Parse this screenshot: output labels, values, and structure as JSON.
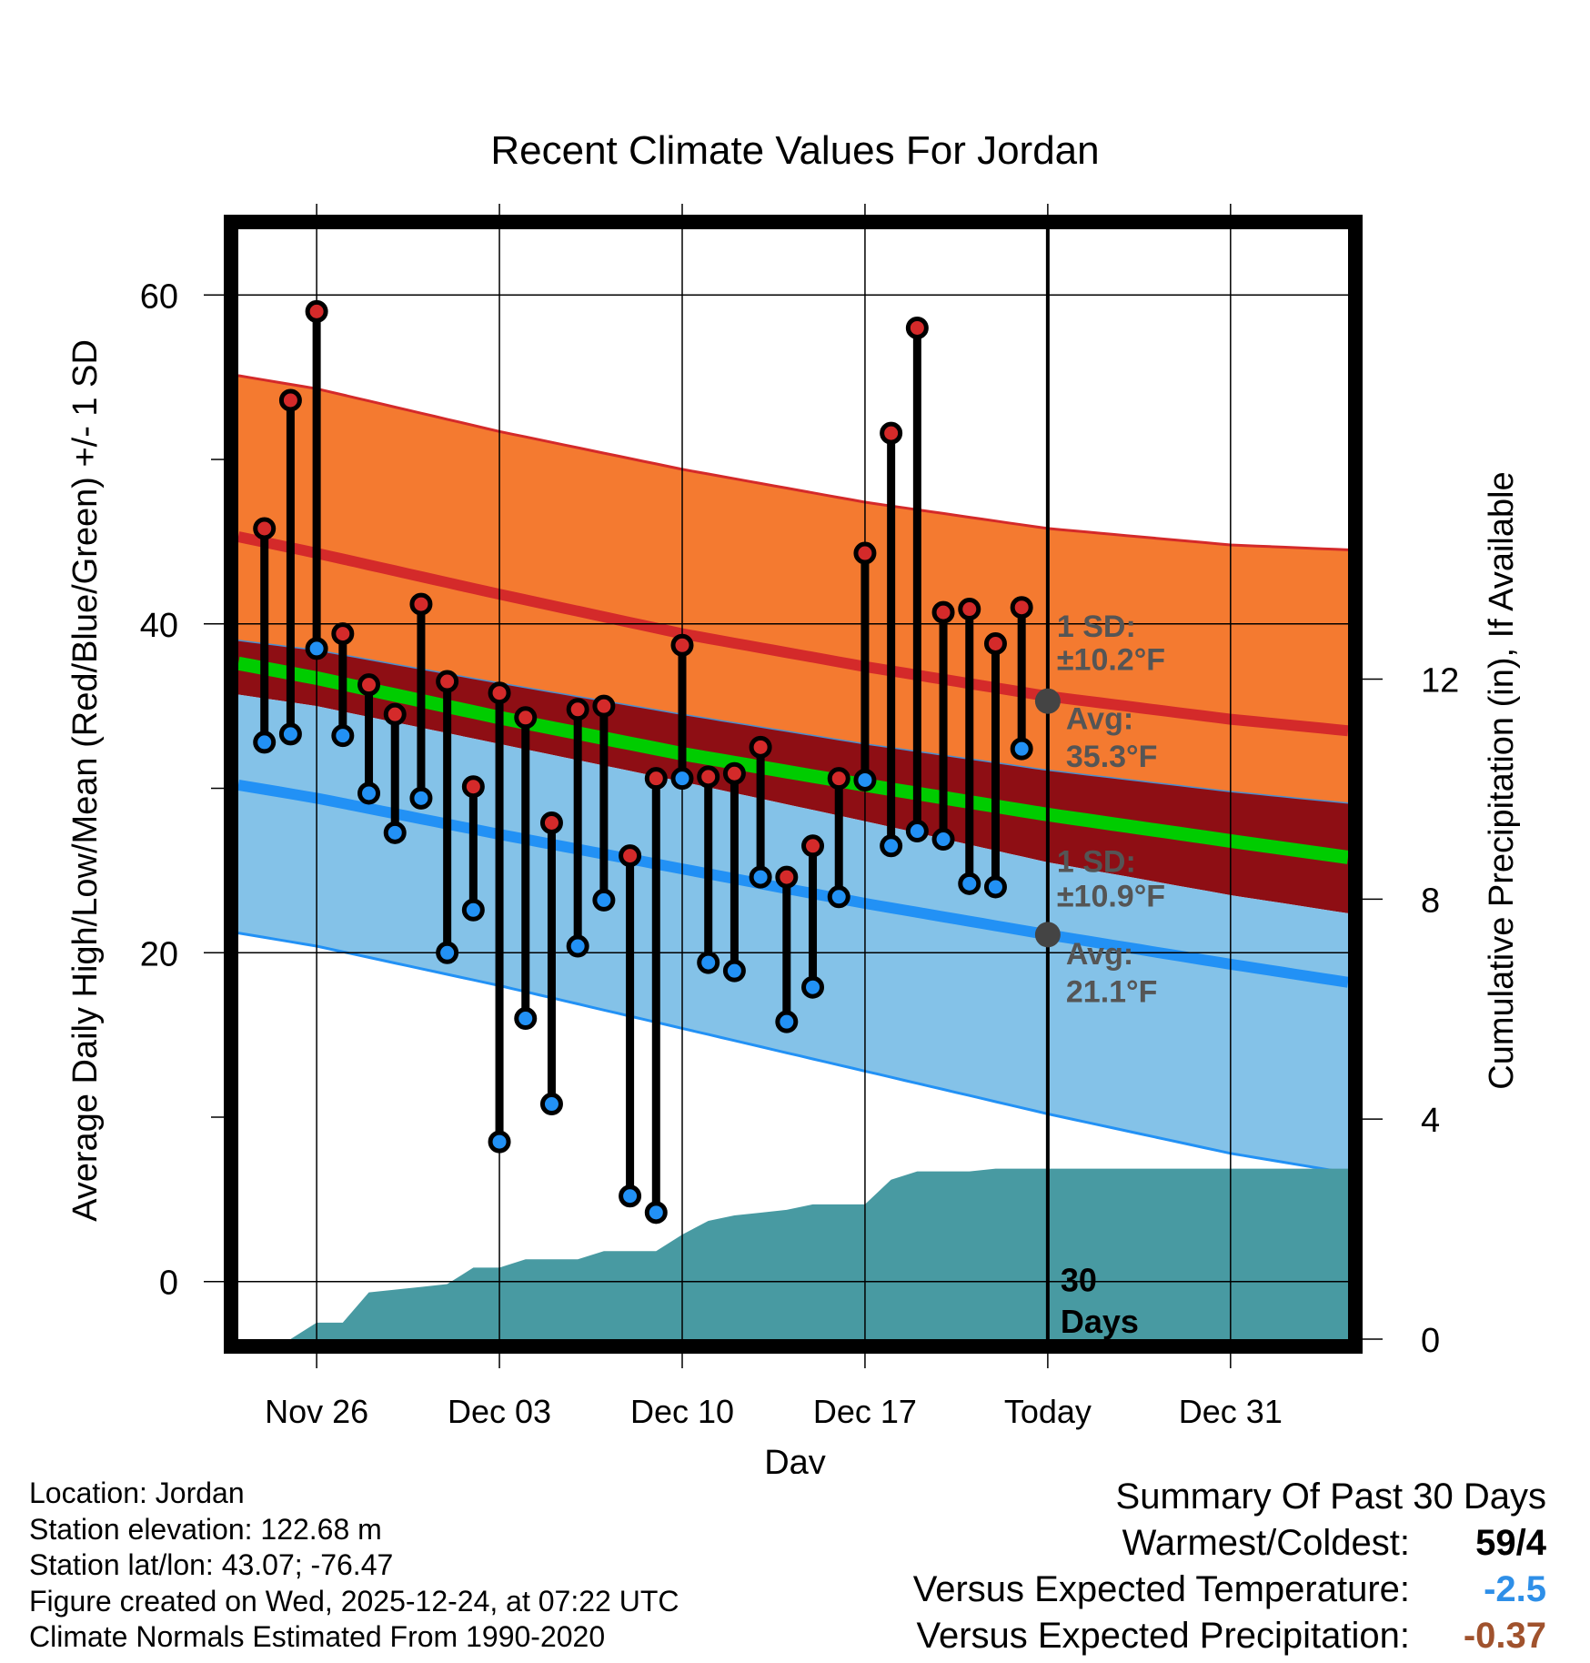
{
  "chart_data": {
    "type": "line",
    "title": "Recent Climate Values For Jordan",
    "xlabel": "Day",
    "ylabel": "Average Daily High/Low/Mean (Red/Blue/Green) +/- 1 SD",
    "y2label": "Cumulative Precipitation (in), If Available",
    "xlim": [
      -3,
      39.5
    ],
    "ylim": [
      -3.5,
      64
    ],
    "y2lim": [
      0,
      20.18
    ],
    "x_tick_labels": [
      {
        "x": 0,
        "label": "Nov 26"
      },
      {
        "x": 7,
        "label": "Dec 03"
      },
      {
        "x": 14,
        "label": "Dec 10"
      },
      {
        "x": 21,
        "label": "Dec 17"
      },
      {
        "x": 28,
        "label": "Today"
      },
      {
        "x": 35,
        "label": "Dec 31"
      }
    ],
    "y_ticks": [
      0,
      20,
      40,
      60
    ],
    "y_minor_ticks": [
      10,
      30,
      50
    ],
    "y2_ticks": [
      0,
      4,
      8,
      12
    ],
    "today_x": 28,
    "days_x": [
      -2,
      -1,
      0,
      1,
      2,
      3,
      4,
      5,
      6,
      7,
      8,
      9,
      10,
      11,
      12,
      13,
      14,
      15,
      16,
      17,
      18,
      19,
      20,
      21,
      22,
      23,
      24,
      25,
      26,
      27
    ],
    "daily_high": [
      45.8,
      53.6,
      59.0,
      39.4,
      36.3,
      34.5,
      41.2,
      36.5,
      30.1,
      35.8,
      34.3,
      27.9,
      34.8,
      35.0,
      25.9,
      30.6,
      38.7,
      30.7,
      30.9,
      32.5,
      24.6,
      26.5,
      30.6,
      44.3,
      51.6,
      58.0,
      40.7,
      40.9,
      38.8,
      41.0
    ],
    "daily_low": [
      32.8,
      33.3,
      38.5,
      33.2,
      29.7,
      27.3,
      29.4,
      20.0,
      22.6,
      8.5,
      16.0,
      10.8,
      20.4,
      23.2,
      5.2,
      4.2,
      30.6,
      19.4,
      18.9,
      24.6,
      15.8,
      17.9,
      23.4,
      30.5,
      26.5,
      27.4,
      26.9,
      24.2,
      24.0,
      32.4
    ],
    "normal_high": {
      "x": [
        -3,
        0,
        7,
        14,
        21,
        28,
        35,
        39.5
      ],
      "values": [
        45.3,
        44.3,
        41.8,
        39.4,
        37.4,
        35.6,
        34.2,
        33.5
      ]
    },
    "normal_high_sd": {
      "x": [
        -3,
        0,
        7,
        14,
        21,
        28,
        35,
        39.5
      ],
      "upper": [
        55.1,
        54.3,
        51.7,
        49.4,
        47.4,
        45.8,
        44.8,
        44.5
      ],
      "lower": [
        39.0,
        38.4,
        36.4,
        34.5,
        32.7,
        31.1,
        29.8,
        29.1
      ]
    },
    "normal_mean": {
      "x": [
        -3,
        0,
        7,
        14,
        21,
        28,
        35,
        39.5
      ],
      "values": [
        37.6,
        36.7,
        34.3,
        32.1,
        30.2,
        28.4,
        26.8,
        25.8
      ]
    },
    "normal_low": {
      "x": [
        -3,
        0,
        7,
        14,
        21,
        28,
        35,
        39.5
      ],
      "values": [
        30.2,
        29.4,
        27.2,
        25.1,
        23.0,
        21.1,
        19.3,
        18.2
      ]
    },
    "normal_low_sd": {
      "x": [
        -3,
        0,
        7,
        14,
        21,
        28,
        35,
        39.5
      ],
      "upper": [
        35.7,
        35.0,
        32.7,
        30.4,
        28.0,
        25.5,
        23.5,
        22.4
      ],
      "lower": [
        21.2,
        20.4,
        18.0,
        15.4,
        12.8,
        10.2,
        7.8,
        6.6
      ]
    },
    "cumulative_precip": {
      "x": [
        -3,
        -1,
        0,
        1,
        2,
        3,
        4,
        5,
        6,
        7,
        8,
        9,
        10,
        11,
        12,
        13,
        14,
        15,
        16,
        17,
        18,
        19,
        20,
        21,
        22,
        23,
        24,
        25,
        26,
        27,
        28,
        39.5
      ],
      "values": [
        0,
        0,
        0.3,
        0.3,
        0.85,
        0.9,
        0.95,
        1.0,
        1.3,
        1.3,
        1.45,
        1.45,
        1.45,
        1.6,
        1.6,
        1.6,
        1.9,
        2.15,
        2.25,
        2.3,
        2.35,
        2.45,
        2.45,
        2.45,
        2.9,
        3.05,
        3.05,
        3.05,
        3.1,
        3.1,
        3.1,
        3.1
      ]
    },
    "annotations": {
      "high_sd": "1 SD:",
      "high_sd_value": "±10.2°F",
      "high_avg": "Avg:",
      "high_avg_value": "35.3°F",
      "low_sd": "1 SD:",
      "low_sd_value": "±10.9°F",
      "low_avg": "Avg:",
      "low_avg_value": "21.1°F",
      "days_count": "30",
      "days_label": "Days",
      "high_avg_marker": 35.3,
      "low_avg_marker": 21.1
    },
    "colors": {
      "high_band": "#f47a30",
      "high_line": "#d42a2a",
      "mean_band": "#8e0e14",
      "mean_line": "#00cc00",
      "low_band": "#84c2e8",
      "low_line": "#2291f5",
      "precip": "#489aa2",
      "high_marker": "#d42a2a",
      "low_marker": "#2291f5",
      "annotation_text": "#555555",
      "avg_marker": "#444444"
    }
  },
  "footer": {
    "location": "Location: Jordan",
    "elevation": "Station elevation: 122.68 m",
    "latlon": "Station lat/lon: 43.07; -76.47",
    "created": "Figure created on Wed, 2025-12-24, at 07:22 UTC",
    "normals": "Climate Normals Estimated From 1990-2020"
  },
  "summary": {
    "title": "Summary Of Past 30 Days",
    "warmest_coldest_label": "Warmest/Coldest:",
    "warmest_value": "59",
    "slash": "/",
    "coldest_value": "4",
    "temp_label": "Versus Expected Temperature:",
    "temp_value": "-2.5",
    "precip_label": "Versus Expected Precipitation:",
    "precip_value": "-0.37",
    "temp_color": "#2e8fe8",
    "precip_color": "#a0522d"
  }
}
